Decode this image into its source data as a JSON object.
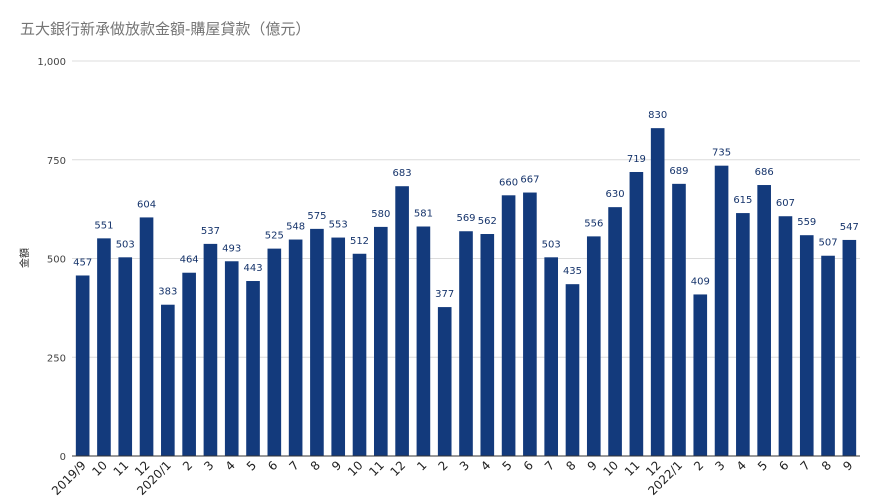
{
  "chart_data": {
    "type": "bar",
    "title": "五大銀行新承做放款金額-購屋貸款（億元）",
    "ylabel": "金額",
    "xlabel": "",
    "ylim": [
      0,
      1000
    ],
    "yticks": [
      "0",
      "250",
      "500",
      "750",
      "1,000"
    ],
    "grid": true,
    "legend": "none",
    "bar_color": "#133a7c",
    "categories": [
      "2019/9",
      "10",
      "11",
      "12",
      "2020/1",
      "2",
      "3",
      "4",
      "5",
      "6",
      "7",
      "8",
      "9",
      "10",
      "11",
      "12",
      "1",
      "2",
      "3",
      "4",
      "5",
      "6",
      "7",
      "8",
      "9",
      "10",
      "11",
      "12",
      "2022/1",
      "2",
      "3",
      "4",
      "5",
      "6",
      "7",
      "8",
      "9"
    ],
    "values": [
      457,
      551,
      503,
      604,
      383,
      464,
      537,
      493,
      443,
      525,
      548,
      575,
      553,
      512,
      580,
      683,
      581,
      377,
      569,
      562,
      660,
      667,
      503,
      435,
      556,
      630,
      719,
      830,
      689,
      409,
      735,
      615,
      686,
      607,
      559,
      507,
      547
    ],
    "data_labels": [
      "457",
      "551",
      "503",
      "604",
      "383",
      "464",
      "537",
      "493",
      "443",
      "525",
      "548",
      "575",
      "553",
      "512",
      "580",
      "683",
      "581",
      "377",
      "569",
      "562",
      "660",
      "667",
      "503",
      "435",
      "556",
      "630",
      "719",
      "830",
      "689",
      "409",
      "735",
      "615",
      "686",
      "607",
      "559",
      "507",
      "547"
    ]
  }
}
